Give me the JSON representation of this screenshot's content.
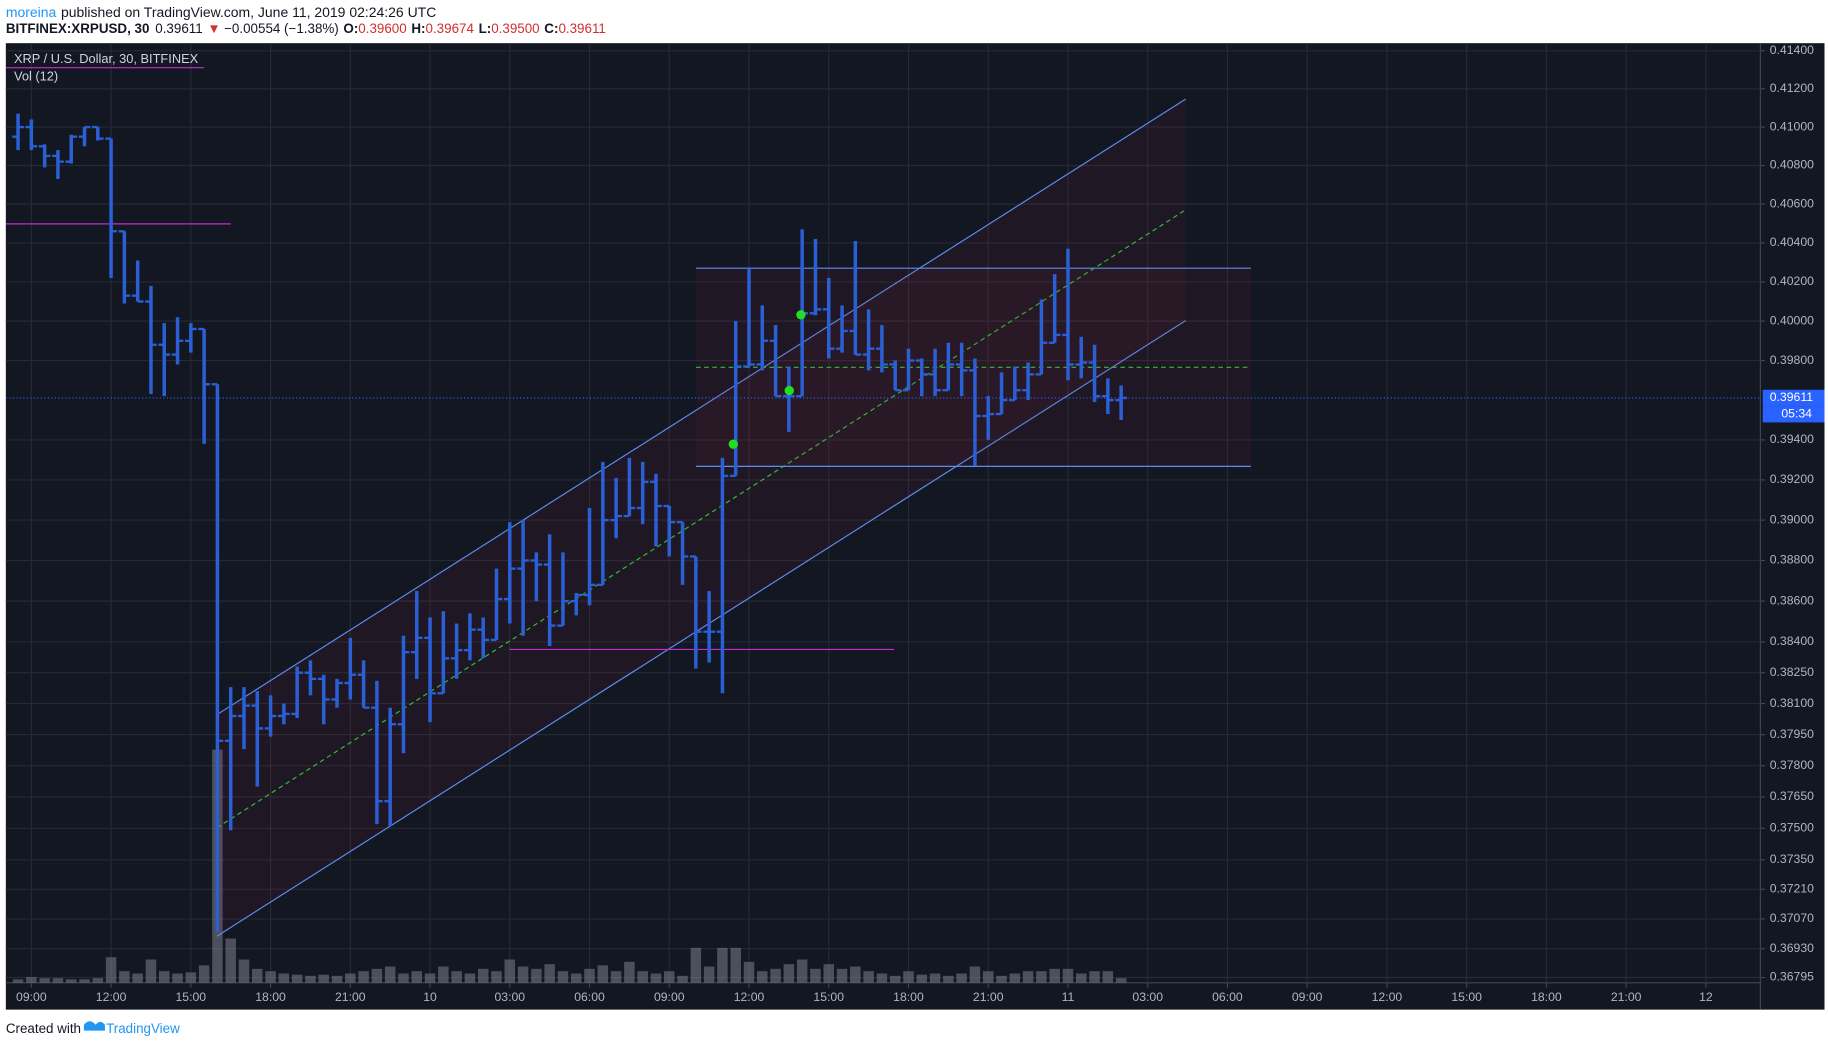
{
  "header": {
    "user": "moreina",
    "published": "published on TradingView.com, June 11, 2019 02:24:26 UTC",
    "symbol": "BITFINEX:XRPUSD, 30",
    "last": "0.39611",
    "arrow": "▼",
    "change": "−0.00554 (−1.38%)",
    "o_label": "O:",
    "open": "0.39600",
    "h_label": "H:",
    "high": "0.39674",
    "l_label": "L:",
    "low": "0.39500",
    "c_label": "C:",
    "close": "0.39611"
  },
  "footer": {
    "created": "Created with",
    "brand": "TradingView"
  },
  "chart_data": {
    "type": "ohlc",
    "title": "XRP / U.S. Dollar, 30, BITFINEX",
    "volume_label": "Vol (12)",
    "color": "#2a5fd6",
    "volume_color": "#7b7f8a",
    "log_scale": true,
    "grid": true,
    "last_price": 0.39611,
    "countdown": "05:34",
    "xlim": [
      -0.96,
      65.05
    ],
    "xticks": [
      {
        "value": 0,
        "label": "09:00"
      },
      {
        "value": 3,
        "label": "12:00"
      },
      {
        "value": 6,
        "label": "15:00"
      },
      {
        "value": 9,
        "label": "18:00"
      },
      {
        "value": 12,
        "label": "21:00"
      },
      {
        "value": 15,
        "label": "10"
      },
      {
        "value": 18,
        "label": "03:00"
      },
      {
        "value": 21,
        "label": "06:00"
      },
      {
        "value": 24,
        "label": "09:00"
      },
      {
        "value": 27,
        "label": "12:00"
      },
      {
        "value": 30,
        "label": "15:00"
      },
      {
        "value": 33,
        "label": "18:00"
      },
      {
        "value": 36,
        "label": "21:00"
      },
      {
        "value": 39,
        "label": "11"
      },
      {
        "value": 42,
        "label": "03:00"
      },
      {
        "value": 45,
        "label": "06:00"
      },
      {
        "value": 48,
        "label": "09:00"
      },
      {
        "value": 51,
        "label": "12:00"
      },
      {
        "value": 54,
        "label": "15:00"
      },
      {
        "value": 57,
        "label": "18:00"
      },
      {
        "value": 60,
        "label": "21:00"
      },
      {
        "value": 63,
        "label": "12"
      }
    ],
    "ylim": [
      0.3677,
      0.4144
    ],
    "yticks": [
      {
        "value": 0.414,
        "label": "0.41400"
      },
      {
        "value": 0.412,
        "label": "0.41200"
      },
      {
        "value": 0.41,
        "label": "0.41000"
      },
      {
        "value": 0.408,
        "label": "0.40800"
      },
      {
        "value": 0.406,
        "label": "0.40600"
      },
      {
        "value": 0.404,
        "label": "0.40400"
      },
      {
        "value": 0.402,
        "label": "0.40200"
      },
      {
        "value": 0.4,
        "label": "0.40000"
      },
      {
        "value": 0.398,
        "label": "0.39800"
      },
      {
        "value": 0.394,
        "label": "0.39400"
      },
      {
        "value": 0.392,
        "label": "0.39200"
      },
      {
        "value": 0.39,
        "label": "0.39000"
      },
      {
        "value": 0.388,
        "label": "0.38800"
      },
      {
        "value": 0.386,
        "label": "0.38600"
      },
      {
        "value": 0.384,
        "label": "0.38400"
      },
      {
        "value": 0.3825,
        "label": "0.38250"
      },
      {
        "value": 0.381,
        "label": "0.38100"
      },
      {
        "value": 0.3795,
        "label": "0.37950"
      },
      {
        "value": 0.378,
        "label": "0.37800"
      },
      {
        "value": 0.3765,
        "label": "0.37650"
      },
      {
        "value": 0.375,
        "label": "0.37500"
      },
      {
        "value": 0.3735,
        "label": "0.37350"
      },
      {
        "value": 0.3721,
        "label": "0.37210"
      },
      {
        "value": 0.3707,
        "label": "0.37070"
      },
      {
        "value": 0.3693,
        "label": "0.36930"
      },
      {
        "value": 0.36795,
        "label": "0.36795"
      }
    ],
    "x": [
      -0.5,
      0,
      0.5,
      1,
      1.5,
      2,
      2.5,
      3,
      3.5,
      4,
      4.5,
      5,
      5.5,
      6,
      6.5,
      7,
      7.5,
      8,
      8.5,
      9,
      9.5,
      10,
      10.5,
      11,
      11.5,
      12,
      12.5,
      13,
      13.5,
      14,
      14.5,
      15,
      15.5,
      16,
      16.5,
      17,
      17.5,
      18,
      18.5,
      19,
      19.5,
      20,
      20.5,
      21,
      21.5,
      22,
      22.5,
      23,
      23.5,
      24,
      24.5,
      25,
      25.5,
      26,
      26.5,
      27,
      27.5,
      28,
      28.5,
      29,
      29.5,
      30,
      30.5,
      31,
      31.5,
      32,
      32.5,
      33,
      33.5,
      34,
      34.5,
      35,
      35.5,
      36,
      36.5,
      37,
      37.5,
      38,
      38.5,
      39,
      39.5,
      40,
      40.5,
      41
    ],
    "open": [
      0.4095,
      0.41,
      0.409,
      0.4085,
      0.4082,
      0.4095,
      0.41,
      0.4094,
      0.4046,
      0.4013,
      0.401,
      0.3988,
      0.3983,
      0.399,
      0.3996,
      0.3968,
      0.3792,
      0.3804,
      0.3809,
      0.3798,
      0.3804,
      0.3805,
      0.3825,
      0.3822,
      0.3812,
      0.382,
      0.3824,
      0.3808,
      0.3763,
      0.38,
      0.3835,
      0.3842,
      0.3815,
      0.3832,
      0.3836,
      0.3846,
      0.3841,
      0.3861,
      0.3876,
      0.388,
      0.3878,
      0.3848,
      0.386,
      0.3863,
      0.3868,
      0.39,
      0.3902,
      0.3906,
      0.3919,
      0.3907,
      0.3899,
      0.3882,
      0.3845,
      0.3845,
      0.3922,
      0.3977,
      0.3978,
      0.399,
      0.3962,
      0.3962,
      0.4004,
      0.4006,
      0.3986,
      0.3995,
      0.3983,
      0.3986,
      0.3978,
      0.3965,
      0.398,
      0.3973,
      0.3965,
      0.3978,
      0.3975,
      0.3952,
      0.3953,
      0.396,
      0.3965,
      0.3973,
      0.3989,
      0.3993,
      0.3978,
      0.3979,
      0.3962,
      0.396
    ],
    "high": [
      0.4107,
      0.4104,
      0.4091,
      0.4088,
      0.4096,
      0.41,
      0.41,
      0.4094,
      0.4046,
      0.4031,
      0.4018,
      0.3999,
      0.4002,
      0.3999,
      0.3996,
      0.3968,
      0.3818,
      0.3818,
      0.3816,
      0.3814,
      0.381,
      0.3828,
      0.3831,
      0.3824,
      0.3822,
      0.3842,
      0.3831,
      0.3821,
      0.3808,
      0.3843,
      0.3865,
      0.3852,
      0.3855,
      0.3849,
      0.3854,
      0.3852,
      0.3876,
      0.3899,
      0.39,
      0.3884,
      0.3893,
      0.3884,
      0.3864,
      0.3906,
      0.3929,
      0.3921,
      0.3931,
      0.3929,
      0.3923,
      0.3907,
      0.3899,
      0.3882,
      0.3865,
      0.3931,
      0.4,
      0.4027,
      0.4008,
      0.3998,
      0.3977,
      0.4047,
      0.4042,
      0.4022,
      0.4008,
      0.4041,
      0.4006,
      0.3998,
      0.398,
      0.3986,
      0.3981,
      0.3986,
      0.3989,
      0.3989,
      0.3981,
      0.3962,
      0.3974,
      0.3977,
      0.3979,
      0.4011,
      0.4024,
      0.4037,
      0.3992,
      0.3988,
      0.3971,
      0.39674
    ],
    "low": [
      0.4088,
      0.4088,
      0.4079,
      0.4073,
      0.4081,
      0.409,
      0.4093,
      0.4022,
      0.4009,
      0.401,
      0.3963,
      0.3962,
      0.3978,
      0.3984,
      0.3938,
      0.3701,
      0.3749,
      0.3788,
      0.377,
      0.3794,
      0.38,
      0.3803,
      0.3814,
      0.38,
      0.3808,
      0.3812,
      0.3808,
      0.3752,
      0.3751,
      0.3786,
      0.3822,
      0.3801,
      0.3815,
      0.3822,
      0.3831,
      0.3832,
      0.3841,
      0.3849,
      0.3843,
      0.386,
      0.3838,
      0.3848,
      0.3853,
      0.3858,
      0.3868,
      0.3891,
      0.3902,
      0.3898,
      0.3887,
      0.3882,
      0.3868,
      0.3827,
      0.383,
      0.3815,
      0.3922,
      0.3977,
      0.3975,
      0.3962,
      0.3944,
      0.3962,
      0.4003,
      0.3981,
      0.3984,
      0.3983,
      0.3975,
      0.3974,
      0.3965,
      0.3965,
      0.3962,
      0.3962,
      0.3965,
      0.3962,
      0.3927,
      0.394,
      0.3953,
      0.396,
      0.396,
      0.3973,
      0.3989,
      0.397,
      0.3971,
      0.3959,
      0.3953,
      0.395
    ],
    "close": [
      0.41,
      0.409,
      0.4085,
      0.4082,
      0.4095,
      0.41,
      0.4094,
      0.4046,
      0.4013,
      0.401,
      0.3988,
      0.3983,
      0.399,
      0.3996,
      0.3968,
      0.3792,
      0.3804,
      0.3809,
      0.3798,
      0.3804,
      0.3805,
      0.3825,
      0.3822,
      0.3812,
      0.382,
      0.3824,
      0.3808,
      0.3763,
      0.38,
      0.3835,
      0.3842,
      0.3815,
      0.3832,
      0.3836,
      0.3846,
      0.3841,
      0.3861,
      0.3876,
      0.388,
      0.3878,
      0.3848,
      0.386,
      0.3863,
      0.3868,
      0.39,
      0.3902,
      0.3906,
      0.3919,
      0.3907,
      0.3899,
      0.3882,
      0.3845,
      0.3845,
      0.3922,
      0.3977,
      0.3978,
      0.399,
      0.3962,
      0.3962,
      0.4004,
      0.4006,
      0.3986,
      0.3995,
      0.3983,
      0.3986,
      0.3978,
      0.3965,
      0.398,
      0.3973,
      0.3965,
      0.3978,
      0.3975,
      0.3952,
      0.3953,
      0.396,
      0.3965,
      0.3973,
      0.3989,
      0.3993,
      0.3978,
      0.3979,
      0.3962,
      0.396,
      0.39611
    ],
    "volume": [
      3,
      5,
      4,
      4,
      3,
      3,
      4,
      22,
      10,
      8,
      20,
      10,
      8,
      9,
      15,
      200,
      38,
      20,
      12,
      10,
      8,
      7,
      6,
      7,
      6,
      8,
      10,
      12,
      14,
      8,
      10,
      8,
      14,
      10,
      8,
      12,
      10,
      20,
      14,
      12,
      16,
      10,
      8,
      12,
      15,
      10,
      18,
      10,
      8,
      10,
      6,
      30,
      14,
      30,
      30,
      18,
      10,
      12,
      16,
      20,
      12,
      16,
      12,
      14,
      10,
      8,
      6,
      10,
      7,
      8,
      6,
      8,
      14,
      10,
      6,
      8,
      10,
      10,
      12,
      12,
      8,
      10,
      10,
      4
    ]
  }
}
